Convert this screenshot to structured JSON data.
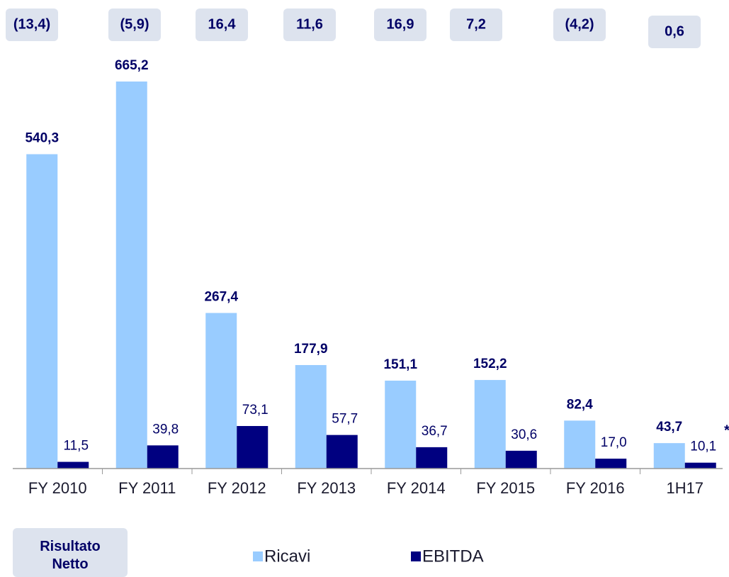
{
  "chart_data": {
    "type": "bar",
    "categories": [
      "FY 2010",
      "FY 2011",
      "FY 2012",
      "FY 2013",
      "FY 2014",
      "FY 2015",
      "FY 2016",
      "1H17"
    ],
    "series": [
      {
        "name": "Ricavi",
        "color": "#99ccff",
        "values": [
          540.3,
          665.2,
          267.4,
          177.9,
          151.1,
          152.2,
          82.4,
          43.7
        ],
        "value_labels": [
          "540,3",
          "665,2",
          "267,4",
          "177,9",
          "151,1",
          "152,2",
          "82,4",
          "43,7"
        ]
      },
      {
        "name": "EBITDA",
        "color": "#000080",
        "values": [
          11.5,
          39.8,
          73.1,
          57.7,
          36.7,
          30.6,
          17.0,
          10.1
        ],
        "value_labels": [
          "11,5",
          "39,8",
          "73,1",
          "57,7",
          "36,7",
          "30,6",
          "17,0",
          "10,1"
        ]
      }
    ],
    "ylim": [
      0,
      700
    ],
    "net_result": {
      "label": "Risultato Netto",
      "values": [
        -13.4,
        -5.9,
        16.4,
        11.6,
        16.9,
        7.2,
        -4.2,
        0.6
      ],
      "value_labels": [
        "(13,4)",
        "(5,9)",
        "16,4",
        "11,6",
        "16,9",
        "7,2",
        "(4,2)",
        "0,6"
      ]
    },
    "annotation": "*"
  }
}
